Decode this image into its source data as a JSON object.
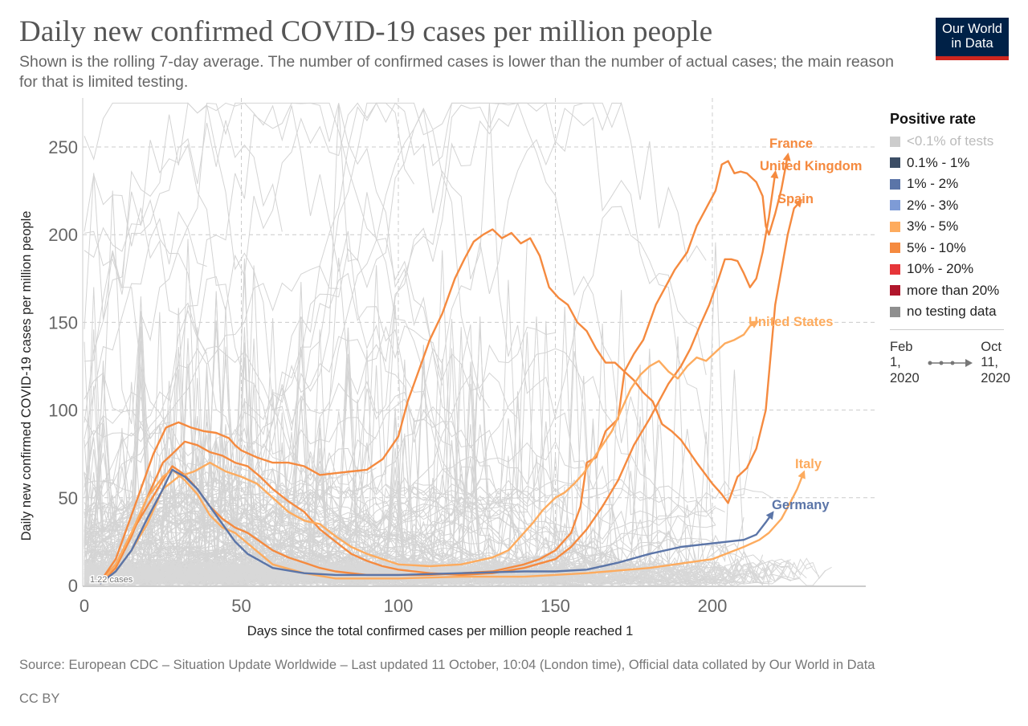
{
  "header": {
    "title": "Daily new confirmed COVID-19 cases per million people",
    "subtitle": "Shown is the rolling 7-day average. The number of confirmed cases is lower than the number of actual cases; the main reason for that is limited testing.",
    "logo_line1": "Our World",
    "logo_line2": "in Data"
  },
  "footer": {
    "source": "Source: European CDC – Situation Update Worldwide – Last updated 11 October, 10:04 (London time), Official data collated by Our World in Data",
    "license": "CC BY"
  },
  "legend": {
    "title": "Positive rate",
    "items": [
      {
        "label": "<0.1% of tests",
        "color": "#cccccc",
        "muted": true
      },
      {
        "label": "0.1% - 1%",
        "color": "#3c4e66"
      },
      {
        "label": "1% - 2%",
        "color": "#5b75a8"
      },
      {
        "label": "2% - 3%",
        "color": "#7e9bd6"
      },
      {
        "label": "3% - 5%",
        "color": "#fdab5e"
      },
      {
        "label": "5% - 10%",
        "color": "#f58a3f"
      },
      {
        "label": "10% - 20%",
        "color": "#e63539"
      },
      {
        "label": "more than 20%",
        "color": "#b0162b"
      },
      {
        "label": "no testing data",
        "color": "#8f8f8f"
      }
    ],
    "timeline_start": "Feb 1, 2020",
    "timeline_start_lines": [
      "Feb",
      "1,",
      "2020"
    ],
    "timeline_end_lines": [
      "Oct",
      "11,",
      "2020"
    ]
  },
  "chart_data": {
    "type": "line",
    "title": "Daily new confirmed COVID-19 cases per million people",
    "xlabel": "Days since the total confirmed cases per million people reached 1",
    "ylabel": "Daily new confirmed COVID-19 cases per million people",
    "xlim": [
      0,
      248
    ],
    "ylim": [
      0,
      270
    ],
    "xticks": [
      0,
      50,
      100,
      150,
      200
    ],
    "yticks": [
      0,
      50,
      100,
      150,
      200,
      250
    ],
    "grid": true,
    "start_annotation": "1.22 cases",
    "legend_position": "right",
    "series": [
      {
        "name": "France",
        "label_color": "#f58a3f",
        "color": "#f58a3f",
        "points": [
          [
            5,
            2
          ],
          [
            10,
            12
          ],
          [
            15,
            30
          ],
          [
            20,
            45
          ],
          [
            25,
            60
          ],
          [
            28,
            68
          ],
          [
            32,
            63
          ],
          [
            36,
            55
          ],
          [
            40,
            45
          ],
          [
            44,
            38
          ],
          [
            48,
            33
          ],
          [
            52,
            30
          ],
          [
            56,
            25
          ],
          [
            60,
            20
          ],
          [
            65,
            16
          ],
          [
            70,
            13
          ],
          [
            75,
            10
          ],
          [
            80,
            8
          ],
          [
            90,
            6
          ],
          [
            100,
            6
          ],
          [
            110,
            6
          ],
          [
            120,
            7
          ],
          [
            130,
            8
          ],
          [
            140,
            12
          ],
          [
            145,
            15
          ],
          [
            150,
            20
          ],
          [
            155,
            30
          ],
          [
            158,
            45
          ],
          [
            160,
            70
          ],
          [
            163,
            73
          ],
          [
            166,
            88
          ],
          [
            170,
            95
          ],
          [
            172,
            122
          ],
          [
            175,
            132
          ],
          [
            178,
            140
          ],
          [
            182,
            160
          ],
          [
            185,
            170
          ],
          [
            188,
            180
          ],
          [
            192,
            190
          ],
          [
            195,
            205
          ],
          [
            198,
            215
          ],
          [
            201,
            225
          ],
          [
            203,
            240
          ],
          [
            205,
            242
          ],
          [
            207,
            235
          ],
          [
            209,
            236
          ],
          [
            211,
            235
          ],
          [
            214,
            230
          ],
          [
            216,
            222
          ],
          [
            217,
            205
          ],
          [
            218,
            200
          ],
          [
            220,
            212
          ],
          [
            222,
            226
          ],
          [
            224,
            245
          ]
        ]
      },
      {
        "name": "United Kingdom",
        "label_color": "#f58a3f",
        "color": "#f58a3f",
        "points": [
          [
            5,
            1
          ],
          [
            10,
            10
          ],
          [
            15,
            28
          ],
          [
            20,
            50
          ],
          [
            25,
            70
          ],
          [
            28,
            75
          ],
          [
            32,
            82
          ],
          [
            36,
            80
          ],
          [
            40,
            76
          ],
          [
            44,
            74
          ],
          [
            48,
            70
          ],
          [
            52,
            68
          ],
          [
            56,
            62
          ],
          [
            60,
            55
          ],
          [
            65,
            48
          ],
          [
            70,
            42
          ],
          [
            75,
            32
          ],
          [
            80,
            25
          ],
          [
            85,
            18
          ],
          [
            90,
            14
          ],
          [
            95,
            11
          ],
          [
            100,
            9
          ],
          [
            110,
            7
          ],
          [
            120,
            6
          ],
          [
            130,
            7
          ],
          [
            140,
            10
          ],
          [
            150,
            15
          ],
          [
            155,
            22
          ],
          [
            160,
            32
          ],
          [
            165,
            45
          ],
          [
            170,
            60
          ],
          [
            175,
            80
          ],
          [
            180,
            95
          ],
          [
            183,
            105
          ],
          [
            186,
            115
          ],
          [
            190,
            125
          ],
          [
            193,
            135
          ],
          [
            196,
            148
          ],
          [
            199,
            160
          ],
          [
            202,
            175
          ],
          [
            204,
            186
          ],
          [
            206,
            186
          ],
          [
            208,
            185
          ],
          [
            210,
            178
          ],
          [
            212,
            170
          ],
          [
            214,
            175
          ],
          [
            216,
            190
          ],
          [
            218,
            210
          ],
          [
            220,
            235
          ]
        ]
      },
      {
        "name": "Spain",
        "label_color": "#f58a3f",
        "color": "#f58a3f",
        "points": [
          [
            5,
            2
          ],
          [
            10,
            15
          ],
          [
            15,
            40
          ],
          [
            18,
            55
          ],
          [
            22,
            75
          ],
          [
            26,
            90
          ],
          [
            30,
            93
          ],
          [
            34,
            90
          ],
          [
            38,
            88
          ],
          [
            42,
            87
          ],
          [
            46,
            84
          ],
          [
            48,
            80
          ],
          [
            50,
            77
          ],
          [
            55,
            73
          ],
          [
            60,
            70
          ],
          [
            65,
            70
          ],
          [
            70,
            68
          ],
          [
            75,
            63
          ],
          [
            80,
            64
          ],
          [
            85,
            65
          ],
          [
            90,
            66
          ],
          [
            95,
            72
          ],
          [
            100,
            85
          ],
          [
            103,
            105
          ],
          [
            106,
            120
          ],
          [
            110,
            140
          ],
          [
            114,
            155
          ],
          [
            118,
            175
          ],
          [
            121,
            186
          ],
          [
            124,
            196
          ],
          [
            127,
            200
          ],
          [
            130,
            203
          ],
          [
            133,
            198
          ],
          [
            136,
            201
          ],
          [
            139,
            195
          ],
          [
            142,
            198
          ],
          [
            145,
            188
          ],
          [
            148,
            170
          ],
          [
            151,
            164
          ],
          [
            154,
            160
          ],
          [
            157,
            150
          ],
          [
            160,
            145
          ],
          [
            163,
            135
          ],
          [
            166,
            127
          ],
          [
            169,
            127
          ],
          [
            172,
            122
          ],
          [
            175,
            117
          ],
          [
            178,
            110
          ],
          [
            181,
            105
          ],
          [
            184,
            92
          ],
          [
            187,
            88
          ],
          [
            190,
            83
          ],
          [
            195,
            70
          ],
          [
            200,
            58
          ],
          [
            203,
            52
          ],
          [
            205,
            47
          ],
          [
            208,
            62
          ],
          [
            211,
            67
          ],
          [
            214,
            78
          ],
          [
            217,
            100
          ],
          [
            219,
            140
          ],
          [
            220,
            160
          ],
          [
            222,
            180
          ],
          [
            224,
            200
          ],
          [
            226,
            215
          ],
          [
            228,
            219
          ]
        ]
      },
      {
        "name": "United States",
        "label_color": "#fdab5e",
        "color": "#fdab5e",
        "points": [
          [
            5,
            1
          ],
          [
            10,
            8
          ],
          [
            15,
            20
          ],
          [
            20,
            35
          ],
          [
            25,
            55
          ],
          [
            30,
            62
          ],
          [
            35,
            65
          ],
          [
            40,
            70
          ],
          [
            45,
            65
          ],
          [
            50,
            62
          ],
          [
            55,
            58
          ],
          [
            60,
            50
          ],
          [
            65,
            42
          ],
          [
            70,
            37
          ],
          [
            75,
            35
          ],
          [
            80,
            28
          ],
          [
            85,
            22
          ],
          [
            90,
            18
          ],
          [
            95,
            15
          ],
          [
            100,
            12
          ],
          [
            110,
            11
          ],
          [
            120,
            12
          ],
          [
            130,
            16
          ],
          [
            135,
            20
          ],
          [
            140,
            30
          ],
          [
            143,
            36
          ],
          [
            146,
            43
          ],
          [
            150,
            50
          ],
          [
            153,
            53
          ],
          [
            156,
            58
          ],
          [
            159,
            64
          ],
          [
            162,
            72
          ],
          [
            165,
            80
          ],
          [
            168,
            88
          ],
          [
            171,
            100
          ],
          [
            174,
            112
          ],
          [
            177,
            120
          ],
          [
            180,
            125
          ],
          [
            183,
            128
          ],
          [
            186,
            122
          ],
          [
            189,
            118
          ],
          [
            192,
            125
          ],
          [
            195,
            130
          ],
          [
            198,
            128
          ],
          [
            201,
            133
          ],
          [
            204,
            138
          ],
          [
            207,
            140
          ],
          [
            210,
            143
          ],
          [
            212,
            148
          ],
          [
            214,
            150
          ]
        ]
      },
      {
        "name": "Italy",
        "label_color": "#fdab5e",
        "color": "#fdab5e",
        "points": [
          [
            5,
            1
          ],
          [
            10,
            12
          ],
          [
            15,
            30
          ],
          [
            20,
            50
          ],
          [
            25,
            62
          ],
          [
            28,
            66
          ],
          [
            32,
            60
          ],
          [
            36,
            52
          ],
          [
            40,
            40
          ],
          [
            44,
            33
          ],
          [
            48,
            30
          ],
          [
            52,
            24
          ],
          [
            56,
            18
          ],
          [
            60,
            12
          ],
          [
            70,
            7
          ],
          [
            80,
            4
          ],
          [
            100,
            4
          ],
          [
            120,
            5
          ],
          [
            140,
            5
          ],
          [
            160,
            7
          ],
          [
            180,
            10
          ],
          [
            200,
            15
          ],
          [
            210,
            22
          ],
          [
            215,
            26
          ],
          [
            218,
            30
          ],
          [
            222,
            38
          ],
          [
            225,
            48
          ],
          [
            227,
            55
          ],
          [
            229,
            64
          ]
        ]
      },
      {
        "name": "Germany",
        "label_color": "#5b75a8",
        "color": "#5b75a8",
        "points": [
          [
            5,
            1
          ],
          [
            10,
            8
          ],
          [
            15,
            20
          ],
          [
            20,
            38
          ],
          [
            25,
            55
          ],
          [
            28,
            66
          ],
          [
            32,
            62
          ],
          [
            36,
            55
          ],
          [
            40,
            45
          ],
          [
            44,
            35
          ],
          [
            48,
            25
          ],
          [
            52,
            18
          ],
          [
            56,
            14
          ],
          [
            60,
            10
          ],
          [
            70,
            7
          ],
          [
            80,
            6
          ],
          [
            100,
            6
          ],
          [
            120,
            7
          ],
          [
            140,
            8
          ],
          [
            150,
            8
          ],
          [
            160,
            9
          ],
          [
            170,
            13
          ],
          [
            180,
            18
          ],
          [
            190,
            22
          ],
          [
            200,
            24
          ],
          [
            210,
            26
          ],
          [
            214,
            29
          ],
          [
            217,
            36
          ],
          [
            219,
            41
          ]
        ]
      }
    ]
  }
}
